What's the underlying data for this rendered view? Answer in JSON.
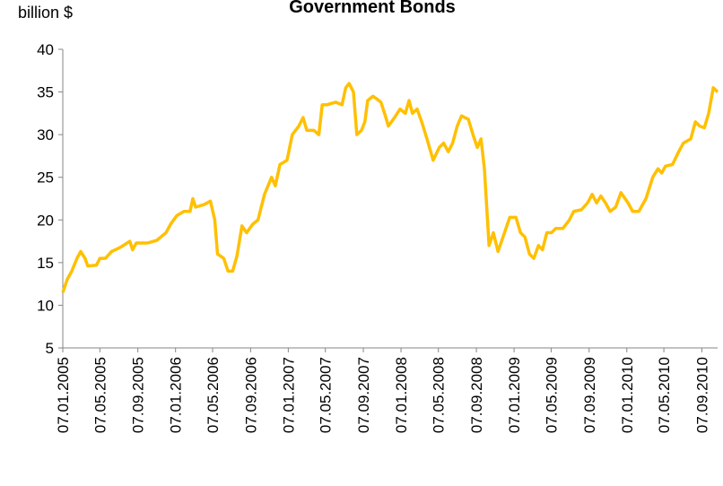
{
  "chart_data": {
    "type": "line",
    "title": "Government Bonds",
    "y_label": "billion $",
    "x": [
      "07.01.2005",
      "21.01.2005",
      "05.02.2005",
      "22.02.2005",
      "06.03.2005",
      "20.03.2005",
      "29.03.2005",
      "26.04.2005",
      "07.05.2005",
      "25.05.2005",
      "14.06.2005",
      "13.07.2005",
      "12.08.2005",
      "21.08.2005",
      "02.09.2005",
      "09.10.2005",
      "07.11.2005",
      "07.12.2005",
      "22.12.2005",
      "11.01.2006",
      "03.02.2006",
      "23.02.2006",
      "04.03.2006",
      "13.03.2006",
      "09.04.2006",
      "30.04.2006",
      "14.05.2006",
      "23.05.2006",
      "12.06.2006",
      "26.06.2006",
      "11.07.2006",
      "25.07.2006",
      "10.08.2006",
      "25.08.2006",
      "14.09.2006",
      "01.10.2006",
      "22.10.2006",
      "14.11.2006",
      "26.11.2006",
      "11.12.2006",
      "03.01.2007",
      "20.01.2007",
      "10.02.2007",
      "24.02.2007",
      "08.03.2007",
      "31.03.2007",
      "16.04.2007",
      "27.04.2007",
      "12.05.2007",
      "10.06.2007",
      "30.06.2007",
      "12.07.2007",
      "23.07.2007",
      "06.08.2007",
      "17.08.2007",
      "01.09.2007",
      "12.09.2007",
      "21.09.2007",
      "08.10.2007",
      "20.10.2007",
      "03.11.2007",
      "19.11.2007",
      "27.11.2007",
      "17.12.2007",
      "04.01.2008",
      "21.01.2008",
      "02.02.2008",
      "13.02.2008",
      "28.02.2008",
      "14.03.2008",
      "31.03.2008",
      "20.04.2008",
      "10.05.2008",
      "24.05.2008",
      "08.06.2008",
      "22.06.2008",
      "07.07.2008",
      "21.07.2008",
      "12.08.2008",
      "27.08.2008",
      "10.09.2008",
      "22.09.2008",
      "03.10.2008",
      "18.10.2008",
      "01.11.2008",
      "16.11.2008",
      "07.12.2008",
      "24.12.2008",
      "13.01.2009",
      "28.01.2009",
      "11.02.2009",
      "26.02.2009",
      "12.03.2009",
      "27.03.2009",
      "09.04.2009",
      "23.04.2009",
      "08.05.2009",
      "22.05.2009",
      "14.06.2009",
      "05.07.2009",
      "19.07.2009",
      "13.08.2009",
      "02.09.2009",
      "17.09.2009",
      "01.10.2009",
      "15.10.2009",
      "30.10.2009",
      "14.11.2009",
      "02.12.2009",
      "19.12.2009",
      "11.01.2010",
      "26.01.2010",
      "15.02.2010",
      "10.03.2010",
      "01.04.2010",
      "18.04.2010",
      "30.04.2010",
      "12.05.2010",
      "04.06.2010",
      "24.06.2010",
      "09.07.2010",
      "02.08.2010",
      "17.08.2010",
      "31.08.2010",
      "15.09.2010",
      "29.09.2010",
      "14.10.2010",
      "28.10.2010"
    ],
    "series": [
      {
        "color": "#ffc000",
        "values": [
          11.5,
          13,
          14,
          15.5,
          16.3,
          15.5,
          14.6,
          14.7,
          15.5,
          15.5,
          16.3,
          16.8,
          17.5,
          16.5,
          17.3,
          17.3,
          17.6,
          18.5,
          19.5,
          20.5,
          21,
          21,
          22.5,
          21.5,
          21.8,
          22.2,
          20,
          16,
          15.5,
          14,
          14,
          15.8,
          19.3,
          18.5,
          19.5,
          20,
          23,
          25,
          24,
          26.5,
          27,
          30,
          31,
          32,
          30.5,
          30.5,
          30,
          33.5,
          33.5,
          33.8,
          33.5,
          35.5,
          36,
          35,
          30,
          30.5,
          31.5,
          34,
          34.5,
          34.2,
          33.8,
          32,
          31,
          32,
          33,
          32.5,
          34,
          32.5,
          33,
          31.5,
          29.5,
          27,
          28.5,
          29,
          28,
          29,
          31,
          32.2,
          31.8,
          30,
          28.5,
          29.5,
          26,
          17,
          18.5,
          16.3,
          18.5,
          20.3,
          20.3,
          18.5,
          18,
          16,
          15.5,
          17,
          16.5,
          18.5,
          18.5,
          19,
          19,
          20,
          21,
          21.2,
          22,
          23,
          22,
          22.8,
          22,
          21,
          21.5,
          23.2,
          22,
          21,
          21,
          22.5,
          25,
          26,
          25.5,
          26.3,
          26.5,
          28,
          29,
          29.5,
          31.5,
          31,
          30.8,
          32.5,
          35.5,
          35
        ]
      }
    ],
    "xlim": [
      "07.01.2005",
      "28.10.2010"
    ],
    "xticks": [
      "07.01.2005",
      "07.05.2005",
      "07.09.2005",
      "07.01.2006",
      "07.05.2006",
      "07.09.2006",
      "07.01.2007",
      "07.05.2007",
      "07.09.2007",
      "07.01.2008",
      "07.05.2008",
      "07.09.2008",
      "07.01.2009",
      "07.05.2009",
      "07.09.2009",
      "07.01.2010",
      "07.05.2010",
      "07.09.2010"
    ],
    "ylim": [
      5,
      40
    ],
    "yticks": [
      5,
      10,
      15,
      20,
      25,
      30,
      35,
      40
    ],
    "grid": false
  }
}
